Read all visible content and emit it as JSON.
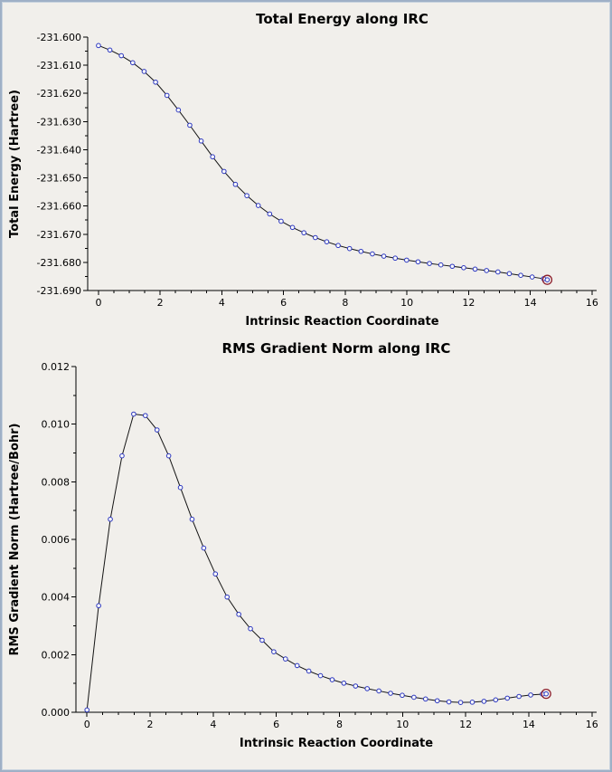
{
  "window": {
    "background": "#f1efeb",
    "border_color": "#9fb0c6"
  },
  "chart_data": [
    {
      "type": "line",
      "title": "Total Energy along IRC",
      "xlabel": "Intrinsic Reaction Coordinate",
      "ylabel": "Total Energy (Hartree)",
      "xlim": [
        -0.35,
        16.15
      ],
      "ylim": [
        -231.69,
        -231.6
      ],
      "xticks": [
        0,
        2,
        4,
        6,
        8,
        10,
        12,
        14,
        16
      ],
      "xtick_decimals": 0,
      "x_minor_step": 0.5,
      "yticks": [
        -231.69,
        -231.68,
        -231.67,
        -231.66,
        -231.65,
        -231.64,
        -231.63,
        -231.62,
        -231.61,
        -231.6
      ],
      "ytick_decimals": 3,
      "y_minor_step": 0.005,
      "grid": false,
      "legend": "none",
      "line_color": "#141414",
      "marker_color": "#2a35c0",
      "endpoint_ring_color": "#8d1f2c",
      "x": [
        0,
        0.37,
        0.74,
        1.11,
        1.48,
        1.85,
        2.22,
        2.59,
        2.96,
        3.33,
        3.7,
        4.07,
        4.44,
        4.81,
        5.18,
        5.55,
        5.92,
        6.29,
        6.66,
        7.03,
        7.4,
        7.77,
        8.14,
        8.51,
        8.88,
        9.25,
        9.62,
        9.99,
        10.36,
        10.73,
        11.1,
        11.47,
        11.84,
        12.21,
        12.58,
        12.95,
        13.32,
        13.69,
        14.06,
        14.43,
        14.55
      ],
      "y": [
        -231.603,
        -231.6046,
        -231.6066,
        -231.6091,
        -231.6122,
        -231.616,
        -231.6207,
        -231.6259,
        -231.6313,
        -231.6369,
        -231.6425,
        -231.6477,
        -231.6523,
        -231.6563,
        -231.6598,
        -231.6628,
        -231.6654,
        -231.6676,
        -231.6695,
        -231.6712,
        -231.6727,
        -231.674,
        -231.6751,
        -231.6761,
        -231.677,
        -231.6778,
        -231.6785,
        -231.6792,
        -231.6798,
        -231.6804,
        -231.6809,
        -231.6814,
        -231.6819,
        -231.6824,
        -231.6829,
        -231.6834,
        -231.684,
        -231.6846,
        -231.6852,
        -231.6858,
        -231.6862
      ]
    },
    {
      "type": "line",
      "title": "RMS Gradient Norm along IRC",
      "xlabel": "Intrinsic Reaction Coordinate",
      "ylabel": "RMS Gradient Norm (Hartree/Bohr)",
      "xlim": [
        -0.35,
        16.15
      ],
      "ylim": [
        0,
        0.012
      ],
      "xticks": [
        0,
        2,
        4,
        6,
        8,
        10,
        12,
        14,
        16
      ],
      "xtick_decimals": 0,
      "x_minor_step": 0.5,
      "yticks": [
        0,
        0.002,
        0.004,
        0.006,
        0.008,
        0.01,
        0.012
      ],
      "ytick_decimals": 3,
      "y_minor_step": 0.001,
      "grid": false,
      "legend": "none",
      "line_color": "#141414",
      "marker_color": "#2a35c0",
      "endpoint_ring_color": "#8d1f2c",
      "x": [
        0,
        0.37,
        0.74,
        1.11,
        1.48,
        1.85,
        2.22,
        2.59,
        2.96,
        3.33,
        3.7,
        4.07,
        4.44,
        4.81,
        5.18,
        5.55,
        5.92,
        6.29,
        6.66,
        7.03,
        7.4,
        7.77,
        8.14,
        8.51,
        8.88,
        9.25,
        9.62,
        9.99,
        10.36,
        10.73,
        11.1,
        11.47,
        11.84,
        12.21,
        12.58,
        12.95,
        13.32,
        13.69,
        14.06,
        14.43,
        14.55
      ],
      "y": [
        8e-05,
        0.0037,
        0.0067,
        0.0089,
        0.01035,
        0.0103,
        0.0098,
        0.0089,
        0.0078,
        0.0067,
        0.0057,
        0.0048,
        0.004,
        0.0034,
        0.0029,
        0.0025,
        0.0021,
        0.00185,
        0.00162,
        0.00143,
        0.00127,
        0.00113,
        0.00101,
        0.00091,
        0.00082,
        0.00074,
        0.00066,
        0.00059,
        0.00052,
        0.00046,
        0.0004,
        0.00036,
        0.00034,
        0.00035,
        0.00038,
        0.00043,
        0.00049,
        0.00055,
        0.0006,
        0.00063,
        0.00064
      ]
    }
  ]
}
